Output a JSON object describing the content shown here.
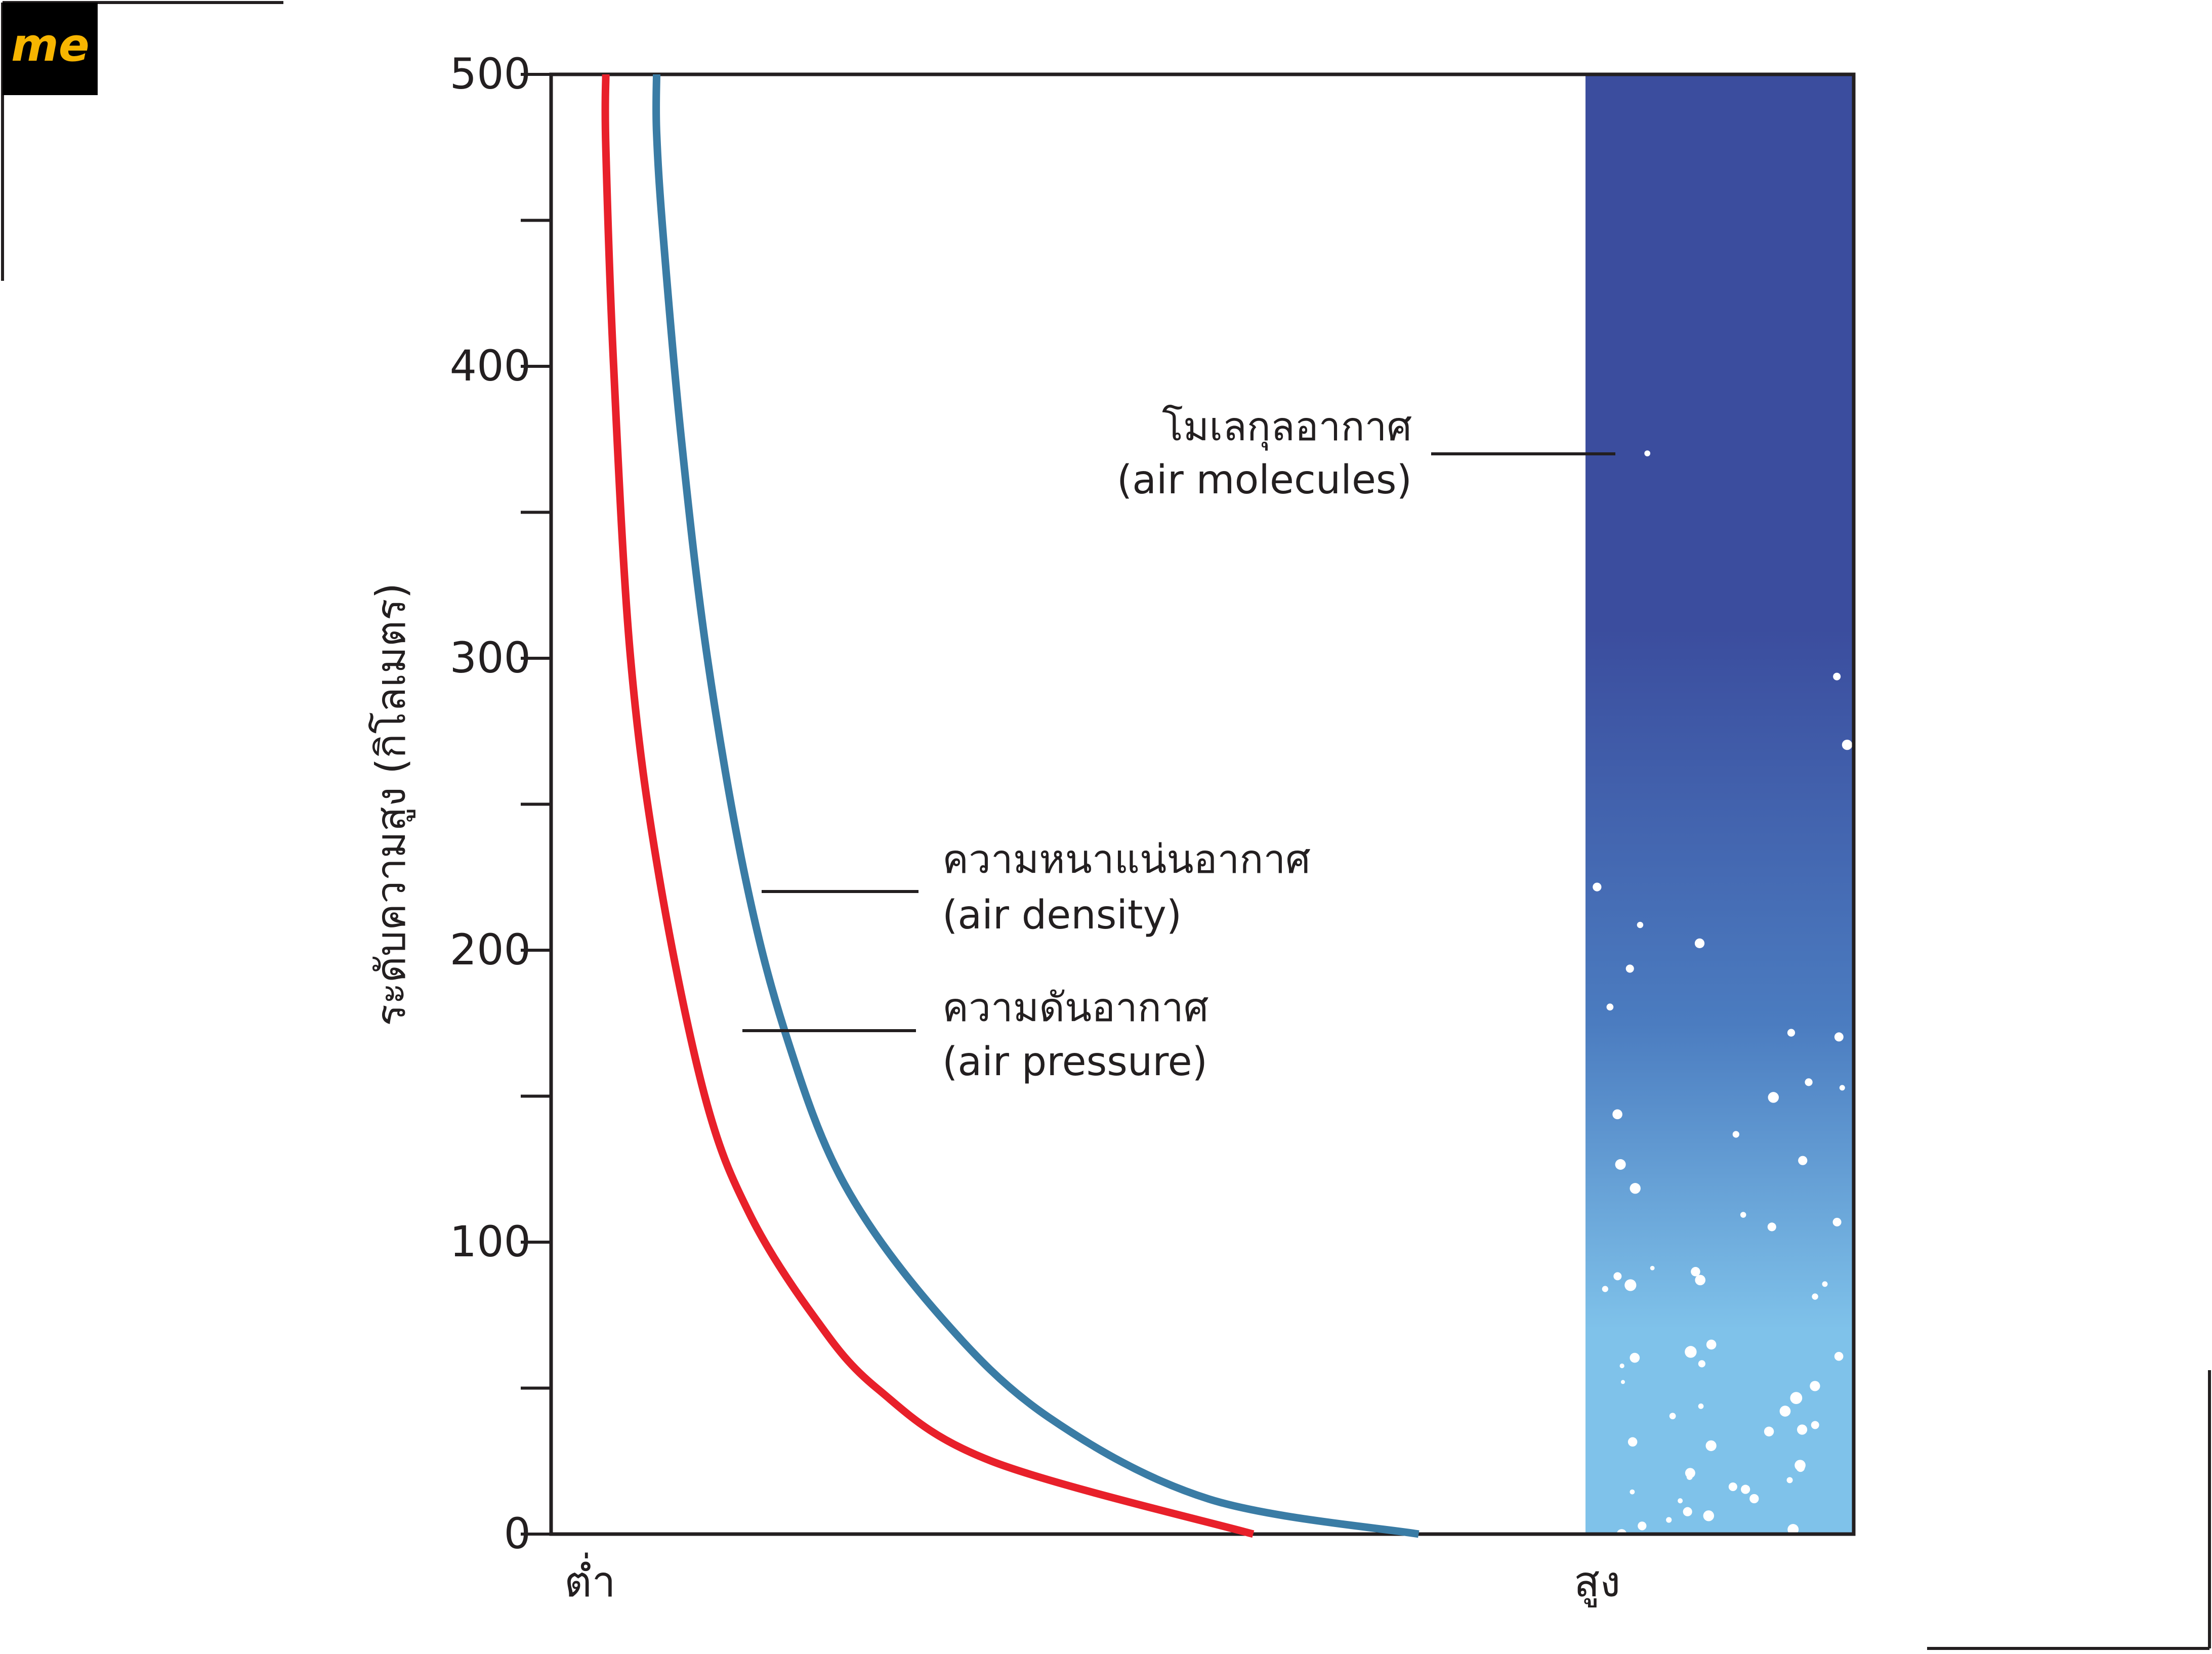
{
  "logo": {
    "text": "me",
    "bg_color": "#000000",
    "text_color": "#f7b500"
  },
  "chart_data": {
    "type": "line",
    "ylabel": "ระดับความสูง (กิโลเมตร)",
    "ylim": [
      0,
      500
    ],
    "yticks": [
      0,
      100,
      200,
      300,
      400,
      500
    ],
    "ytick_labels": [
      "0",
      "100",
      "200",
      "300",
      "400",
      "500"
    ],
    "yminor_ticks": [
      50,
      150,
      250,
      350,
      450
    ],
    "x_categories": [
      "ต่ำ",
      "สูง"
    ],
    "xlim": [
      0,
      1
    ],
    "grid": false,
    "series": [
      {
        "name": "ความดันอากาศ (air pressure)",
        "color": "#e8202a",
        "x": [
          0.539,
          0.338,
          0.25,
          0.201,
          0.152,
          0.118,
          0.083,
          0.061,
          0.048,
          0.042,
          0.042
        ],
        "y": [
          0,
          25,
          50,
          75,
          110,
          150,
          225,
          300,
          400,
          475,
          500
        ]
      },
      {
        "name": "ความหนาแน่นอากาศ (air density)",
        "color": "#3a7ca5",
        "x": [
          0.666,
          0.505,
          0.382,
          0.298,
          0.225,
          0.181,
          0.149,
          0.12,
          0.1,
          0.086,
          0.081,
          0.081
        ],
        "y": [
          0,
          12,
          40,
          75,
          120,
          170,
          225,
          300,
          375,
          445,
          480,
          500
        ]
      }
    ],
    "annotations": [
      {
        "text_th": "ความหนาแน่นอากาศ",
        "text_en": "(air density)"
      },
      {
        "text_th": "ความดันอากาศ",
        "text_en": "(air pressure)"
      },
      {
        "text_th": "โมเลกุลอากาศ",
        "text_en": "(air molecules)"
      }
    ],
    "molecule_column": {
      "top_color": "#3b4d9e",
      "mid_color": "#4b7cc0",
      "bottom_color": "#7fc2ea",
      "dot_color": "#ffffff"
    },
    "axis_color": "#231f20"
  }
}
